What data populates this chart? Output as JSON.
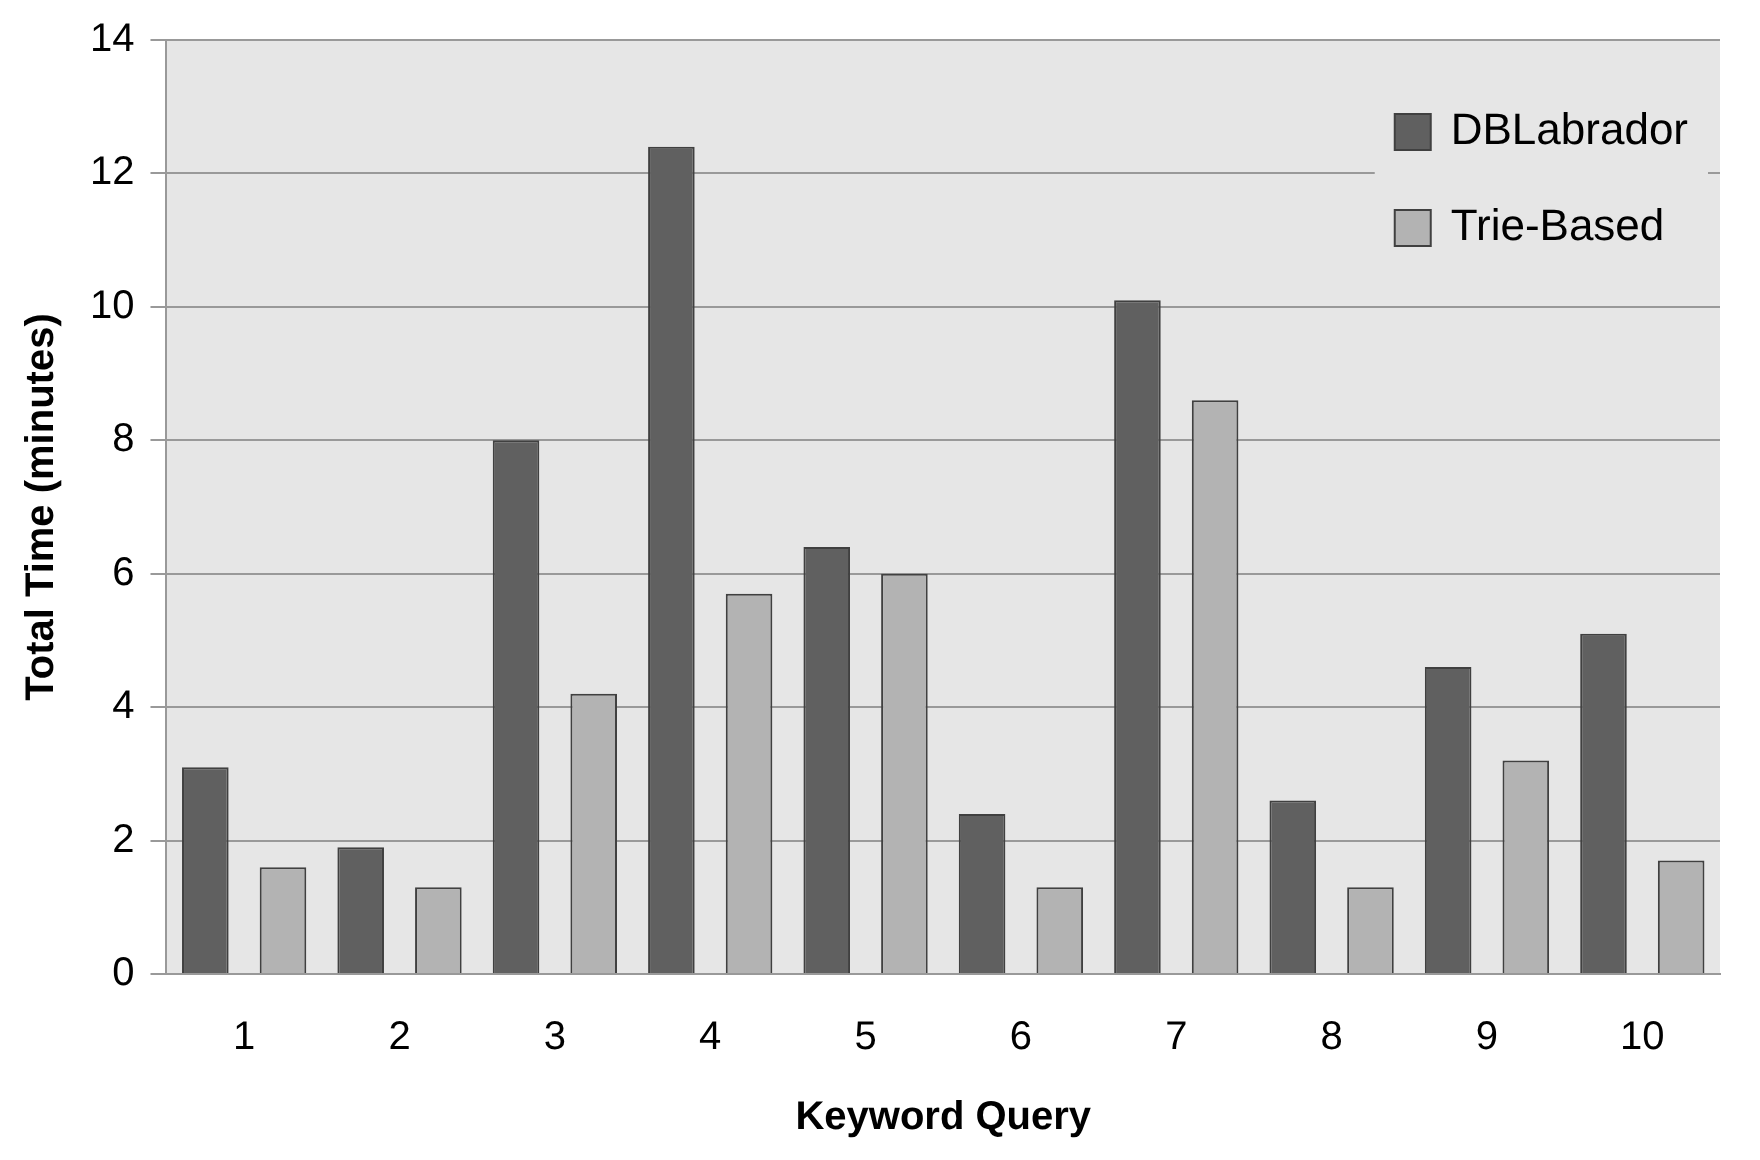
{
  "chart_data": {
    "type": "bar",
    "xlabel": "Keyword Query",
    "ylabel": "Total Time (minutes)",
    "categories": [
      "1",
      "2",
      "3",
      "4",
      "5",
      "6",
      "7",
      "8",
      "9",
      "10"
    ],
    "series": [
      {
        "name": "DBLabrador",
        "color": "#606060",
        "values": [
          3.1,
          1.9,
          8.0,
          12.4,
          6.4,
          2.4,
          10.1,
          2.6,
          4.6,
          5.1
        ]
      },
      {
        "name": "Trie-Based",
        "color": "#b3b3b3",
        "values": [
          1.6,
          1.3,
          4.2,
          5.7,
          6.0,
          1.3,
          8.6,
          1.3,
          3.2,
          1.7
        ]
      }
    ],
    "ylim": [
      0,
      14
    ],
    "yticks": [
      0,
      2,
      4,
      6,
      8,
      10,
      12,
      14
    ],
    "grid": "y",
    "legend": "top right"
  }
}
